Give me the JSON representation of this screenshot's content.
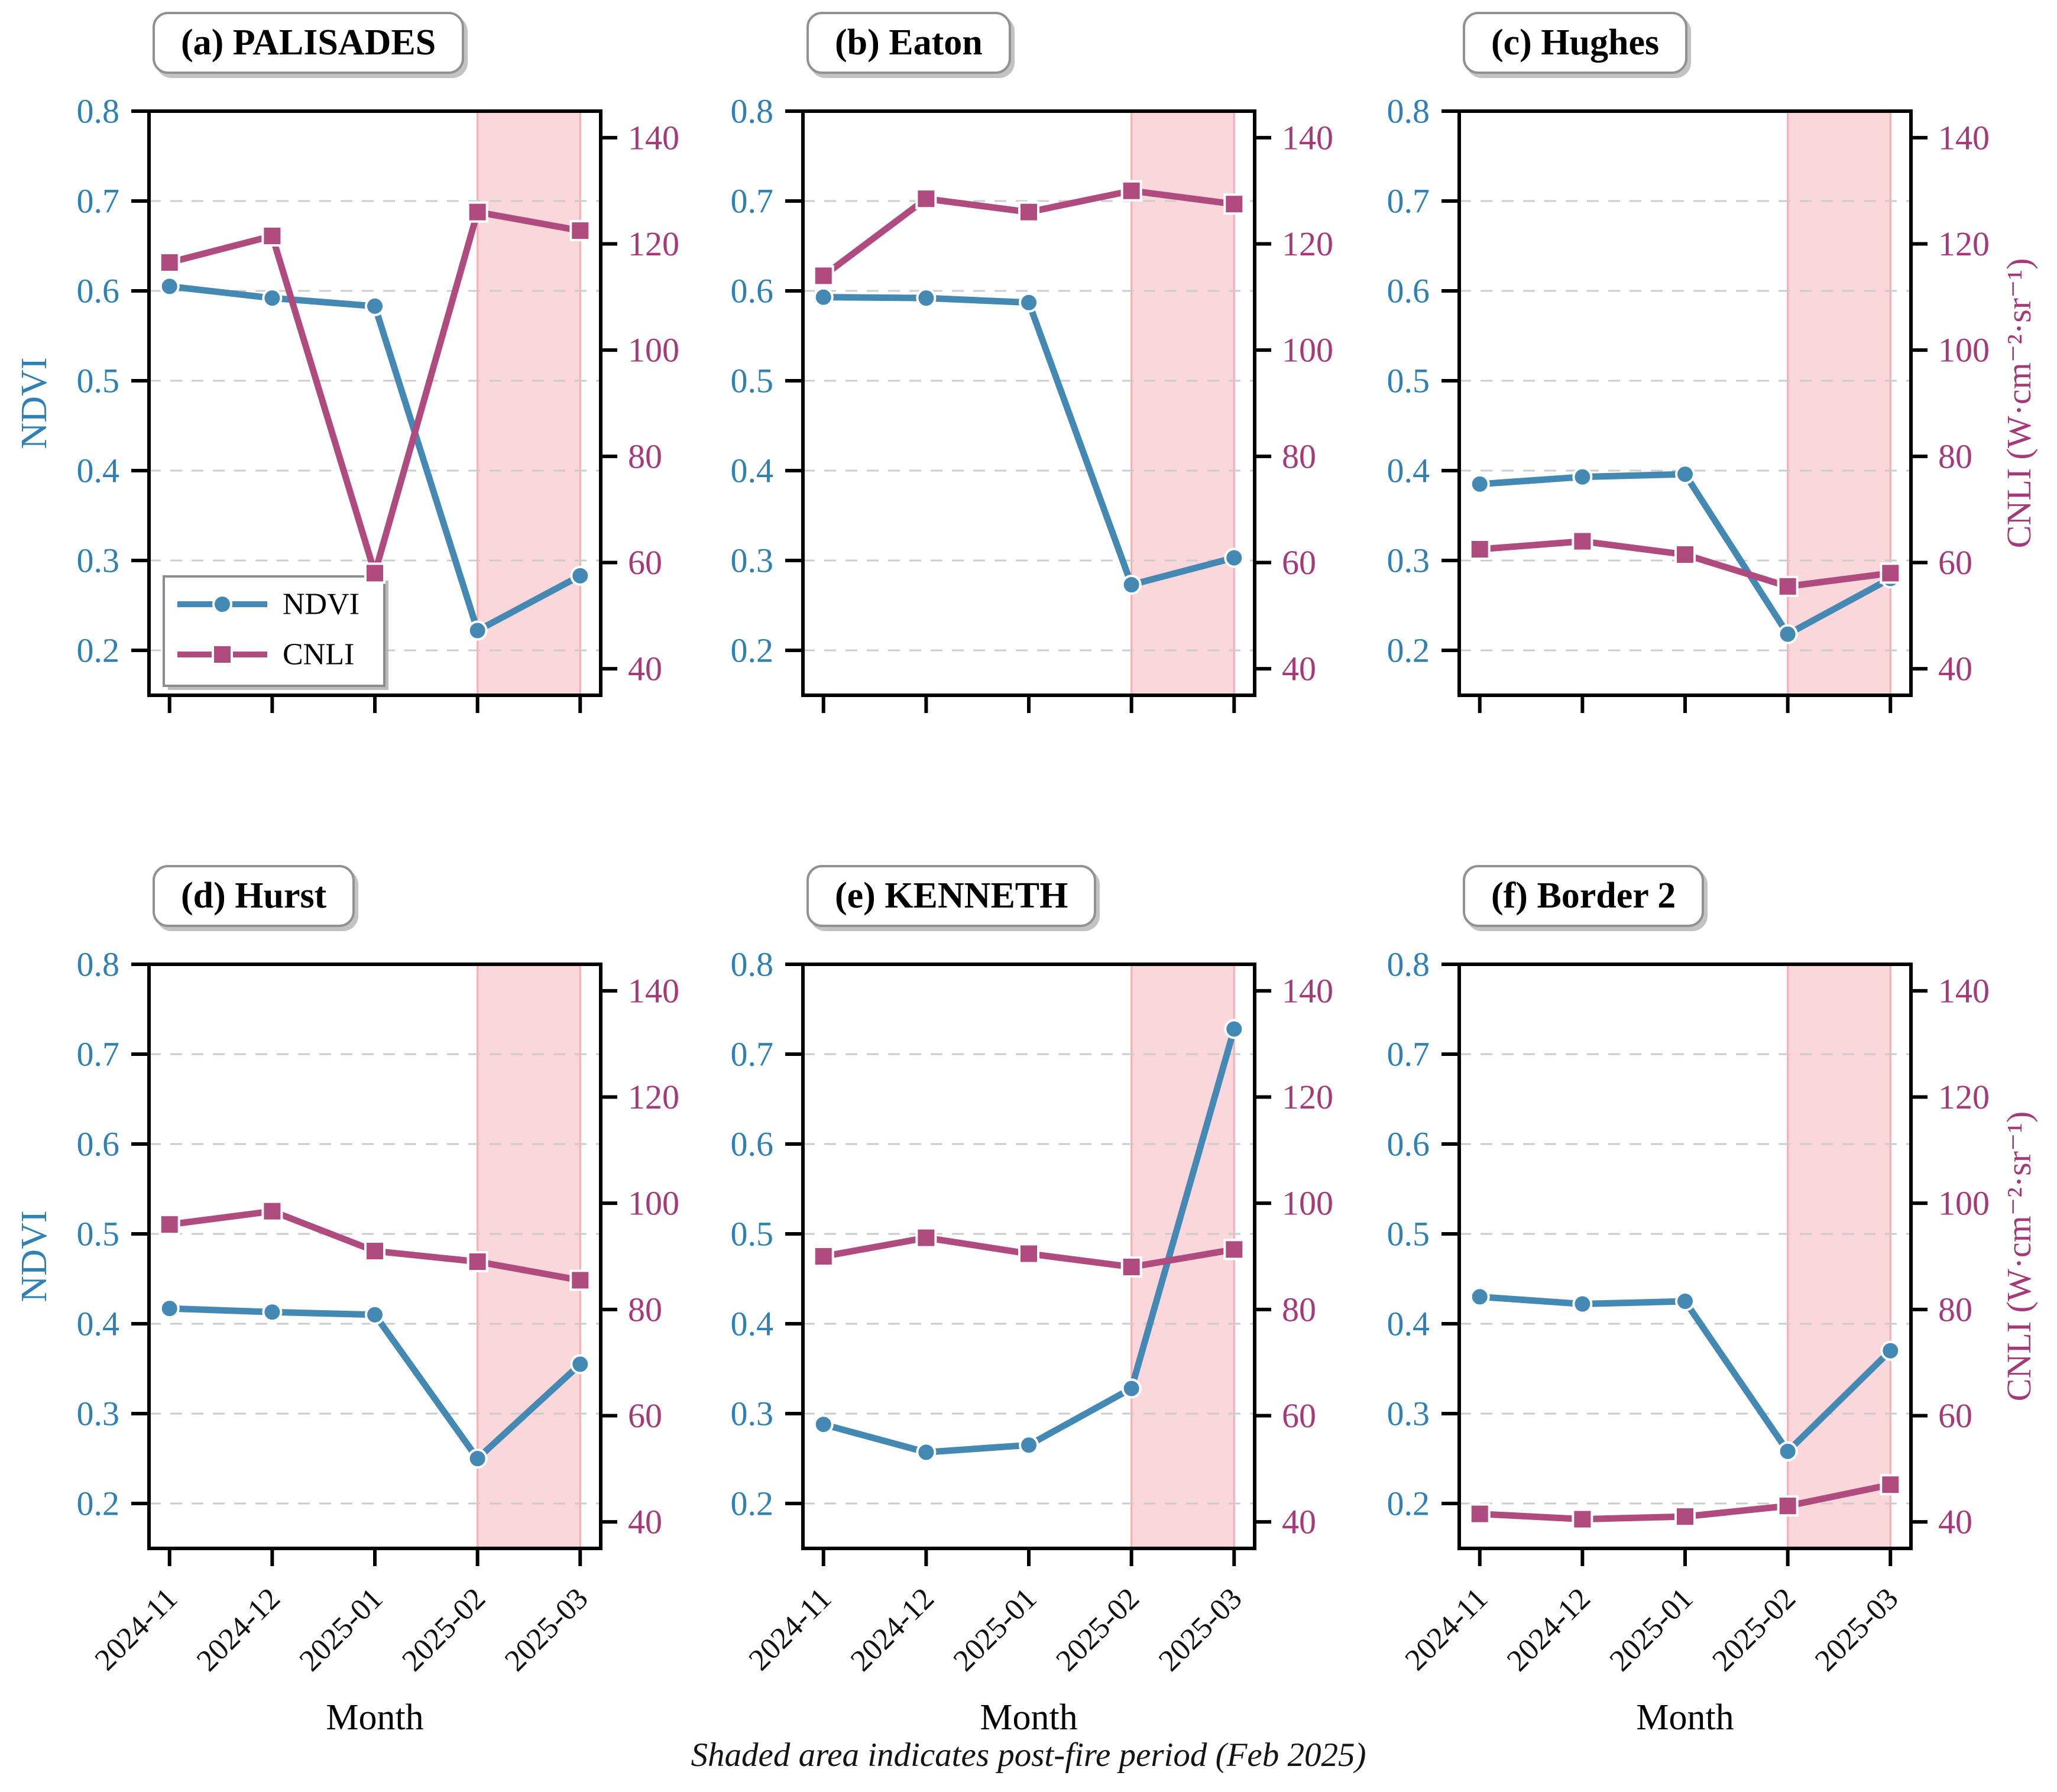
{
  "figure": {
    "caption": "Shaded area indicates post-fire period (Feb 2025)",
    "x_axis_label": "Month",
    "left_axis": {
      "label": "NDVI",
      "ticks": [
        0.8,
        0.7,
        0.6,
        0.5,
        0.4,
        0.3,
        0.2
      ],
      "range": [
        0.15,
        0.8
      ],
      "text_color": "#2f80b5"
    },
    "right_axis": {
      "label": "CNLI (W·cm⁻²·sr⁻¹)",
      "ticks": [
        140,
        120,
        100,
        80,
        60,
        40
      ],
      "range": [
        35,
        145
      ],
      "text_color": "#a63a78"
    },
    "legend": {
      "entries": [
        "NDVI",
        "CNLI"
      ],
      "location": "lower-left-of-panel-a"
    },
    "colors": {
      "ndvi_line": "#4389b3",
      "cnli_line": "#b04b80",
      "shading_fill": "#fad7da",
      "shading_edge": "#f3b0b2",
      "grid": "#cccccc",
      "spine": "#000000"
    }
  },
  "chart_data": [
    {
      "type": "line",
      "title": "(a) PALISADES",
      "categories": [
        "2024-11",
        "2024-12",
        "2025-01",
        "2025-02",
        "2025-03"
      ],
      "series": [
        {
          "name": "NDVI",
          "axis": "left",
          "values": [
            0.605,
            0.592,
            0.583,
            0.222,
            0.283
          ]
        },
        {
          "name": "CNLI",
          "axis": "right",
          "values": [
            116.5,
            121.5,
            58,
            126,
            122.5
          ]
        }
      ],
      "shaded_span": [
        "2025-02",
        "2025-03"
      ],
      "show_legend": true,
      "grid": "dashed-horizontal",
      "legend_position": "lower left"
    },
    {
      "type": "line",
      "title": "(b) Eaton",
      "categories": [
        "2024-11",
        "2024-12",
        "2025-01",
        "2025-02",
        "2025-03"
      ],
      "series": [
        {
          "name": "NDVI",
          "axis": "left",
          "values": [
            0.593,
            0.592,
            0.587,
            0.273,
            0.303
          ]
        },
        {
          "name": "CNLI",
          "axis": "right",
          "values": [
            114,
            128.5,
            126,
            130,
            127.5
          ]
        }
      ],
      "shaded_span": [
        "2025-02",
        "2025-03"
      ],
      "show_legend": false,
      "grid": "dashed-horizontal"
    },
    {
      "type": "line",
      "title": "(c) Hughes",
      "categories": [
        "2024-11",
        "2024-12",
        "2025-01",
        "2025-02",
        "2025-03"
      ],
      "series": [
        {
          "name": "NDVI",
          "axis": "left",
          "values": [
            0.385,
            0.393,
            0.396,
            0.218,
            0.28
          ]
        },
        {
          "name": "CNLI",
          "axis": "right",
          "values": [
            62.5,
            64,
            61.5,
            55.5,
            58
          ]
        }
      ],
      "shaded_span": [
        "2025-02",
        "2025-03"
      ],
      "show_legend": false,
      "grid": "dashed-horizontal"
    },
    {
      "type": "line",
      "title": "(d) Hurst",
      "categories": [
        "2024-11",
        "2024-12",
        "2025-01",
        "2025-02",
        "2025-03"
      ],
      "series": [
        {
          "name": "NDVI",
          "axis": "left",
          "values": [
            0.417,
            0.413,
            0.41,
            0.25,
            0.355
          ]
        },
        {
          "name": "CNLI",
          "axis": "right",
          "values": [
            96,
            98.5,
            91,
            89,
            85.5
          ]
        }
      ],
      "shaded_span": [
        "2025-02",
        "2025-03"
      ],
      "show_legend": false,
      "grid": "dashed-horizontal"
    },
    {
      "type": "line",
      "title": "(e) KENNETH",
      "categories": [
        "2024-11",
        "2024-12",
        "2025-01",
        "2025-02",
        "2025-03"
      ],
      "series": [
        {
          "name": "NDVI",
          "axis": "left",
          "values": [
            0.288,
            0.257,
            0.265,
            0.328,
            0.728
          ]
        },
        {
          "name": "CNLI",
          "axis": "right",
          "values": [
            90,
            93.5,
            90.5,
            88,
            91.3
          ]
        }
      ],
      "shaded_span": [
        "2025-02",
        "2025-03"
      ],
      "show_legend": false,
      "grid": "dashed-horizontal"
    },
    {
      "type": "line",
      "title": "(f) Border 2",
      "categories": [
        "2024-11",
        "2024-12",
        "2025-01",
        "2025-02",
        "2025-03"
      ],
      "series": [
        {
          "name": "NDVI",
          "axis": "left",
          "values": [
            0.43,
            0.422,
            0.425,
            0.258,
            0.37
          ]
        },
        {
          "name": "CNLI",
          "axis": "right",
          "values": [
            41.5,
            40.5,
            41,
            43,
            47
          ]
        }
      ],
      "shaded_span": [
        "2025-02",
        "2025-03"
      ],
      "show_legend": false,
      "grid": "dashed-horizontal"
    }
  ]
}
